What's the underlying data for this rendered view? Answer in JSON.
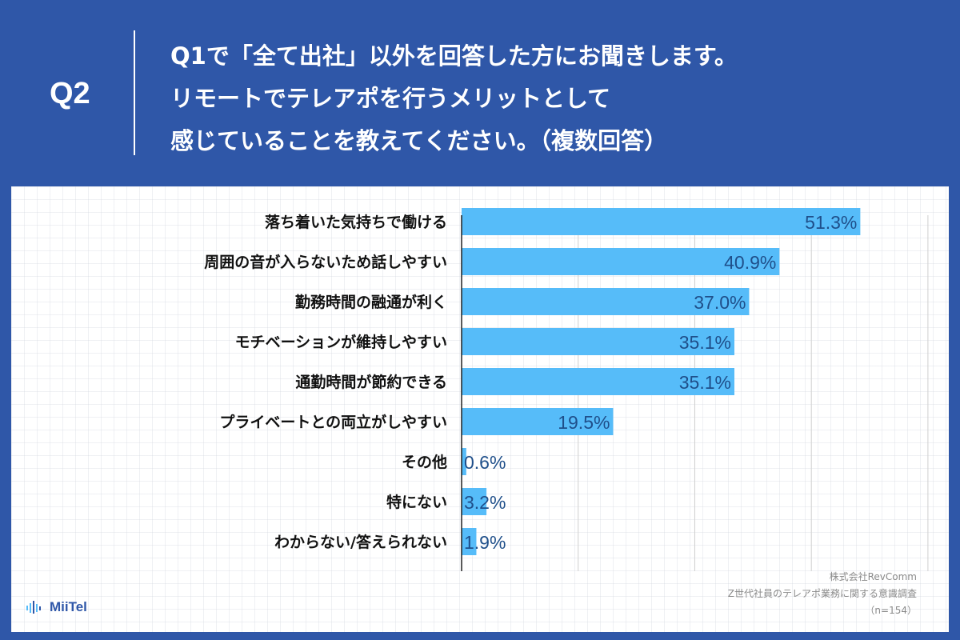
{
  "header": {
    "q_label": "Q2",
    "question_lines": [
      "Q1で「全て出社」以外を回答した方にお聞きします。",
      "リモートでテレアポを行うメリットとして",
      "感じていることを教えてください。（複数回答）"
    ]
  },
  "colors": {
    "background": "#2f57a8",
    "bar": "#56bcf9",
    "value_label": "#1f4f8a",
    "category_label": "#111111",
    "gridline": "#cfcfcf"
  },
  "chart_data": {
    "type": "bar",
    "orientation": "horizontal",
    "categories": [
      "落ち着いた気持ちで働ける",
      "周囲の音が入らないため話しやすい",
      "勤務時間の融通が利く",
      "モチベーションが維持しやすい",
      "通勤時間が節約できる",
      "プライベートとの両立がしやすい",
      "その他",
      "特にない",
      "わからない/答えられない"
    ],
    "values": [
      51.3,
      40.9,
      37.0,
      35.1,
      35.1,
      19.5,
      0.6,
      3.2,
      1.9
    ],
    "value_labels": [
      "51.3%",
      "40.9%",
      "37.0%",
      "35.1%",
      "35.1%",
      "19.5%",
      "0.6%",
      "3.2%",
      "1.9%"
    ],
    "xlim": [
      0,
      60
    ],
    "grid": true,
    "title": "",
    "xlabel": "",
    "ylabel": ""
  },
  "source": {
    "company": "株式会社RevComm",
    "survey": "Z世代社員のテレアポ業務に関する意識調査",
    "sample": "（n=154）"
  },
  "logo": {
    "text": "MiiTel",
    "icon": "soundwave-icon"
  }
}
